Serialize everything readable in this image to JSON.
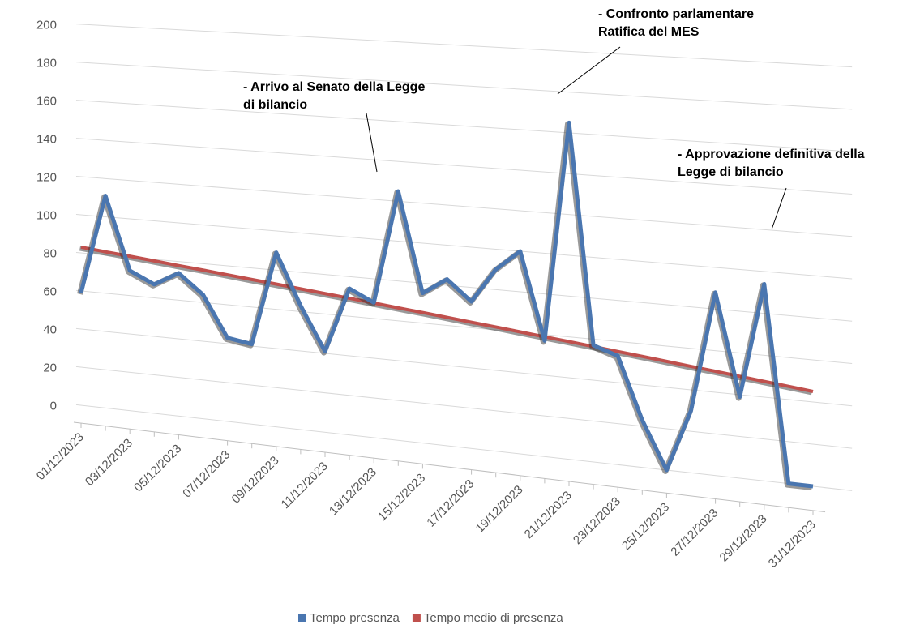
{
  "chart_data": {
    "type": "line",
    "categories": [
      "01/12/2023",
      null,
      "03/12/2023",
      null,
      "05/12/2023",
      null,
      "07/12/2023",
      null,
      "09/12/2023",
      null,
      "11/12/2023",
      null,
      "13/12/2023",
      null,
      "15/12/2023",
      null,
      "17/12/2023",
      null,
      "19/12/2023",
      null,
      "21/12/2023",
      null,
      "23/12/2023",
      null,
      "25/12/2023",
      null,
      "27/12/2023",
      null,
      "29/12/2023",
      null,
      "31/12/2023"
    ],
    "series": [
      {
        "name": "Tempo presenza",
        "color": "#4a76b0",
        "values": [
          59,
          111,
          73,
          67,
          74,
          64,
          43,
          41,
          89,
          63,
          41,
          74,
          68,
          125,
          75,
          83,
          73,
          90,
          100,
          57,
          165,
          57,
          53,
          23,
          0,
          30,
          88,
          39,
          94,
          0,
          0
        ]
      },
      {
        "name": "Tempo medio di presenza",
        "color": "#c0504d",
        "values": [
          83,
          81.7,
          80.5,
          79.2,
          77.9,
          76.7,
          75.4,
          74.1,
          72.9,
          71.6,
          70.3,
          69.1,
          67.8,
          66.5,
          65.3,
          64,
          62.7,
          61.5,
          60.2,
          58.9,
          57.7,
          56.4,
          55.1,
          53.9,
          52.6,
          51.3,
          50.1,
          48.8,
          47.5,
          46.3,
          45
        ]
      }
    ],
    "ylim": [
      0,
      200
    ],
    "yticks": [
      0,
      20,
      40,
      60,
      80,
      100,
      120,
      140,
      160,
      180,
      200
    ],
    "grid": true,
    "annotations": [
      {
        "lines": [
          "- Arrivo al Senato della Legge",
          "di bilancio"
        ]
      },
      {
        "lines": [
          "- Confronto parlamentare",
          "Ratifica del MES"
        ]
      },
      {
        "lines": [
          "- Approvazione definitiva della",
          "Legge di bilancio"
        ]
      }
    ],
    "legend": "bottom"
  }
}
